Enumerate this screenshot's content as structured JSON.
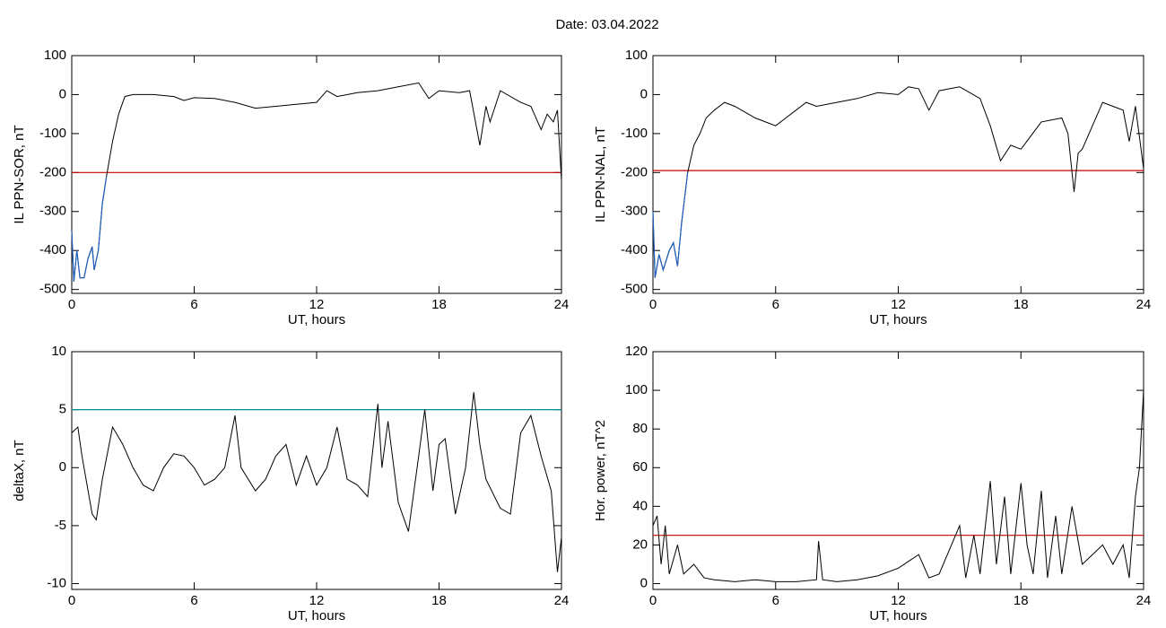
{
  "title": "Date:  03.04.2022",
  "chart_data": [
    {
      "type": "line",
      "y_label": "IL PPN-SOR, nT",
      "x_label": "UT, hours",
      "xlim": [
        0,
        24
      ],
      "xticks": [
        0,
        6,
        12,
        18,
        24
      ],
      "ylim": [
        -510,
        100
      ],
      "yticks": [
        100,
        0,
        -100,
        -200,
        -300,
        -400,
        -500
      ],
      "hline": {
        "value": -200,
        "color": "#cc0000"
      },
      "below_color": "#1f5fbf",
      "series": [
        {
          "color": "#000000",
          "x": [
            0,
            0.1,
            0.25,
            0.4,
            0.6,
            0.8,
            1.0,
            1.1,
            1.3,
            1.5,
            1.7,
            2.0,
            2.3,
            2.6,
            3,
            4,
            5,
            5.5,
            6,
            7,
            8,
            9,
            10,
            11,
            12,
            12.5,
            13,
            14,
            15,
            16,
            17,
            17.5,
            18,
            19,
            19.5,
            20,
            20.3,
            20.5,
            21,
            22,
            22.5,
            23,
            23.3,
            23.6,
            23.8,
            24
          ],
          "values": [
            -350,
            -480,
            -400,
            -470,
            -470,
            -420,
            -390,
            -450,
            -400,
            -280,
            -210,
            -120,
            -50,
            -5,
            0,
            0,
            -5,
            -15,
            -8,
            -10,
            -20,
            -35,
            -30,
            -25,
            -20,
            10,
            -5,
            5,
            10,
            20,
            30,
            -10,
            10,
            5,
            10,
            -130,
            -30,
            -70,
            10,
            -20,
            -30,
            -90,
            -50,
            -70,
            -40,
            -220
          ]
        }
      ]
    },
    {
      "type": "line",
      "y_label": "IL PPN-NAL, nT",
      "x_label": "UT, hours",
      "xlim": [
        0,
        24
      ],
      "xticks": [
        0,
        6,
        12,
        18,
        24
      ],
      "ylim": [
        -510,
        100
      ],
      "yticks": [
        100,
        0,
        -100,
        -200,
        -300,
        -400,
        -500
      ],
      "hline": {
        "value": -195,
        "color": "#cc0000"
      },
      "below_color": "#1f5fbf",
      "series": [
        {
          "color": "#000000",
          "x": [
            0,
            0.1,
            0.3,
            0.5,
            0.8,
            1.0,
            1.2,
            1.4,
            1.7,
            2,
            2.3,
            2.6,
            3,
            3.5,
            4,
            5,
            5.5,
            6,
            6.5,
            7,
            7.5,
            8,
            9,
            10,
            11,
            12,
            12.5,
            13,
            13.5,
            14,
            15,
            16,
            16.5,
            17,
            17.5,
            18,
            19,
            20,
            20.3,
            20.6,
            20.8,
            21,
            21.5,
            22,
            22.5,
            23,
            23.3,
            23.6,
            24
          ],
          "values": [
            -300,
            -470,
            -410,
            -450,
            -400,
            -380,
            -440,
            -330,
            -200,
            -130,
            -100,
            -60,
            -40,
            -20,
            -30,
            -60,
            -70,
            -80,
            -60,
            -40,
            -20,
            -30,
            -20,
            -10,
            5,
            0,
            20,
            15,
            -40,
            10,
            20,
            -10,
            -80,
            -170,
            -130,
            -140,
            -70,
            -60,
            -100,
            -250,
            -150,
            -140,
            -80,
            -20,
            -30,
            -40,
            -120,
            -30,
            -190
          ]
        }
      ]
    },
    {
      "type": "line",
      "y_label": "deltaX, nT",
      "x_label": "UT, hours",
      "xlim": [
        0,
        24
      ],
      "xticks": [
        0,
        6,
        12,
        18,
        24
      ],
      "ylim": [
        -10.5,
        10
      ],
      "yticks": [
        10,
        5,
        0,
        -5,
        -10
      ],
      "hline": {
        "value": 5,
        "color": "#008b8b"
      },
      "series": [
        {
          "color": "#000000",
          "x": [
            0,
            0.3,
            0.5,
            0.8,
            1,
            1.2,
            1.5,
            2,
            2.5,
            3,
            3.5,
            4,
            4.5,
            5,
            5.5,
            6,
            6.5,
            7,
            7.5,
            8,
            8.3,
            9,
            9.5,
            10,
            10.5,
            11,
            11.5,
            12,
            12.5,
            13,
            13.5,
            14,
            14.5,
            15,
            15.2,
            15.5,
            16,
            16.5,
            17,
            17.3,
            17.7,
            18,
            18.3,
            18.8,
            19.3,
            19.7,
            20,
            20.3,
            21,
            21.5,
            22,
            22.5,
            23,
            23.5,
            23.8,
            24
          ],
          "values": [
            3,
            3.5,
            1,
            -2,
            -4,
            -4.5,
            -1,
            3.5,
            2,
            0,
            -1.5,
            -2,
            0,
            1.2,
            1,
            0,
            -1.5,
            -1,
            0,
            4.5,
            0,
            -2,
            -1,
            1,
            2,
            -1.5,
            1,
            -1.5,
            0,
            3.5,
            -1,
            -1.5,
            -2.5,
            5.5,
            0,
            4,
            -3,
            -5.5,
            1,
            5,
            -2,
            2,
            2.5,
            -4,
            0,
            6.5,
            2,
            -1,
            -3.5,
            -4,
            3,
            4.5,
            1,
            -2,
            -9,
            -6
          ]
        }
      ]
    },
    {
      "type": "line",
      "y_label": "Hor. power, nT^2",
      "x_label": "UT, hours",
      "xlim": [
        0,
        24
      ],
      "xticks": [
        0,
        6,
        12,
        18,
        24
      ],
      "ylim": [
        -3,
        120
      ],
      "yticks": [
        120,
        100,
        80,
        60,
        40,
        20,
        0
      ],
      "hline": {
        "value": 25,
        "color": "#cc0000"
      },
      "series": [
        {
          "color": "#000000",
          "x": [
            0,
            0.2,
            0.4,
            0.6,
            0.8,
            1.2,
            1.5,
            2,
            2.5,
            3,
            4,
            5,
            6,
            7,
            8,
            8.1,
            8.3,
            9,
            10,
            11,
            12,
            13,
            13.5,
            14,
            15,
            15.3,
            15.7,
            16,
            16.5,
            16.8,
            17.2,
            17.5,
            18,
            18.3,
            18.6,
            19,
            19.3,
            19.7,
            20,
            20.5,
            21,
            21.5,
            22,
            22.5,
            23,
            23.3,
            23.6,
            23.8,
            24
          ],
          "values": [
            30,
            35,
            10,
            30,
            5,
            20,
            5,
            10,
            3,
            2,
            1,
            2,
            1,
            1,
            2,
            22,
            2,
            1,
            2,
            4,
            8,
            15,
            3,
            5,
            30,
            3,
            25,
            5,
            53,
            10,
            45,
            5,
            52,
            20,
            5,
            48,
            3,
            35,
            5,
            40,
            10,
            15,
            20,
            10,
            20,
            3,
            45,
            60,
            100
          ]
        }
      ]
    }
  ]
}
